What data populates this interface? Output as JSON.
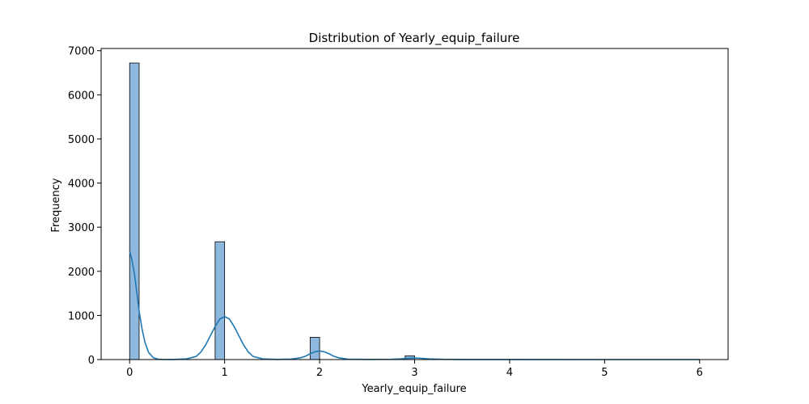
{
  "chart_data": {
    "type": "bar",
    "title": "Distribution of Yearly_equip_failure",
    "xlabel": "Yearly_equip_failure",
    "ylabel": "Frequency",
    "xlim": [
      -0.3,
      6.3
    ],
    "ylim": [
      0,
      7050
    ],
    "xticks": [
      0,
      1,
      2,
      3,
      4,
      5,
      6
    ],
    "yticks": [
      0,
      1000,
      2000,
      3000,
      4000,
      5000,
      6000,
      7000
    ],
    "bin_width": 0.1,
    "bins": [
      {
        "x0": 0.0,
        "count": 6720
      },
      {
        "x0": 0.9,
        "count": 2670
      },
      {
        "x0": 1.9,
        "count": 505
      },
      {
        "x0": 2.9,
        "count": 85
      }
    ],
    "kde": {
      "x": [
        0,
        0.02,
        0.05,
        0.08,
        0.1,
        0.13,
        0.16,
        0.2,
        0.25,
        0.3,
        0.35,
        0.45,
        0.6,
        0.7,
        0.75,
        0.8,
        0.85,
        0.9,
        0.95,
        1.0,
        1.05,
        1.1,
        1.15,
        1.2,
        1.25,
        1.3,
        1.4,
        1.55,
        1.7,
        1.8,
        1.85,
        1.9,
        1.95,
        2.0,
        2.05,
        2.1,
        2.15,
        2.2,
        2.3,
        2.5,
        2.75,
        2.85,
        2.95,
        3.0,
        3.05,
        3.15,
        3.3,
        3.6,
        4.0,
        5.0,
        6.0
      ],
      "y": [
        2450,
        2300,
        1950,
        1450,
        1100,
        700,
        400,
        160,
        40,
        8,
        3,
        2,
        15,
        70,
        170,
        330,
        540,
        750,
        920,
        975,
        920,
        750,
        540,
        330,
        170,
        70,
        15,
        3,
        10,
        40,
        75,
        130,
        175,
        195,
        175,
        130,
        75,
        40,
        8,
        3,
        5,
        15,
        30,
        35,
        30,
        15,
        5,
        2,
        1,
        0,
        0
      ]
    },
    "bar_fill": "#8fb8de",
    "bar_edge": "#000000",
    "kde_color": "#1f77b4",
    "grid": false,
    "legend": "none"
  }
}
